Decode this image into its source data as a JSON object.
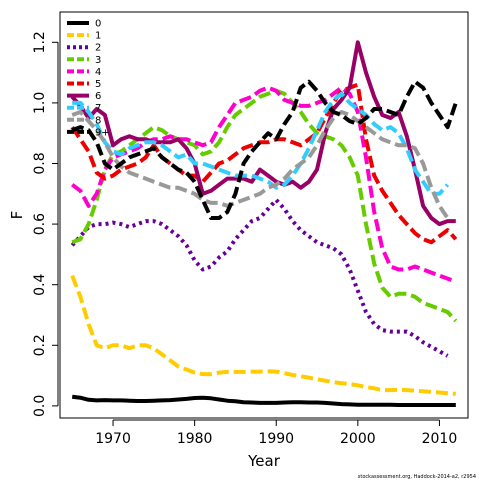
{
  "chart_data": {
    "type": "line",
    "xlabel": "Year",
    "ylabel": "F",
    "xlim": [
      1963.5,
      2013.5
    ],
    "ylim": [
      -0.04,
      1.3
    ],
    "xticks": [
      1970,
      1980,
      1990,
      2000,
      2010
    ],
    "yticks": [
      0.0,
      0.2,
      0.4,
      0.6,
      0.8,
      1.0,
      1.2
    ],
    "ytick_labels": [
      "0.0",
      "0.2",
      "0.4",
      "0.6",
      "0.8",
      "1.0",
      "1.2"
    ],
    "grid": false,
    "legend_position": "top-left",
    "credit": "stockassessment.org, Haddock-2014-a2, r2954",
    "series": [
      {
        "name": "0",
        "color": "#000000",
        "dash": "solid",
        "x": [
          1965,
          1966,
          1967,
          1968,
          1969,
          1970,
          1971,
          1972,
          1973,
          1974,
          1975,
          1976,
          1977,
          1978,
          1979,
          1980,
          1981,
          1982,
          1983,
          1984,
          1985,
          1986,
          1987,
          1988,
          1989,
          1990,
          1991,
          1992,
          1993,
          1994,
          1995,
          1996,
          1997,
          1998,
          1999,
          2000,
          2001,
          2002,
          2003,
          2004,
          2005,
          2006,
          2007,
          2008,
          2009,
          2010,
          2011,
          2012
        ],
        "y": [
          0.03,
          0.027,
          0.02,
          0.018,
          0.019,
          0.018,
          0.018,
          0.017,
          0.016,
          0.016,
          0.017,
          0.018,
          0.019,
          0.021,
          0.023,
          0.026,
          0.027,
          0.025,
          0.021,
          0.017,
          0.015,
          0.012,
          0.011,
          0.01,
          0.01,
          0.01,
          0.011,
          0.012,
          0.012,
          0.011,
          0.011,
          0.01,
          0.008,
          0.006,
          0.005,
          0.004,
          0.004,
          0.004,
          0.004,
          0.004,
          0.003,
          0.003,
          0.003,
          0.003,
          0.003,
          0.003,
          0.003,
          0.003
        ]
      },
      {
        "name": "1",
        "color": "#FFCC00",
        "dash": "dash",
        "x": [
          1965,
          1966,
          1967,
          1968,
          1969,
          1970,
          1971,
          1972,
          1973,
          1974,
          1975,
          1976,
          1977,
          1978,
          1979,
          1980,
          1981,
          1982,
          1983,
          1984,
          1985,
          1986,
          1987,
          1988,
          1989,
          1990,
          1991,
          1992,
          1993,
          1994,
          1995,
          1996,
          1997,
          1998,
          1999,
          2000,
          2001,
          2002,
          2003,
          2004,
          2005,
          2006,
          2007,
          2008,
          2009,
          2010,
          2011,
          2012
        ],
        "y": [
          0.43,
          0.36,
          0.27,
          0.2,
          0.19,
          0.2,
          0.2,
          0.19,
          0.2,
          0.2,
          0.19,
          0.17,
          0.15,
          0.13,
          0.12,
          0.11,
          0.105,
          0.105,
          0.11,
          0.112,
          0.112,
          0.112,
          0.113,
          0.113,
          0.114,
          0.113,
          0.108,
          0.102,
          0.098,
          0.093,
          0.088,
          0.083,
          0.078,
          0.075,
          0.072,
          0.068,
          0.062,
          0.058,
          0.052,
          0.052,
          0.053,
          0.052,
          0.05,
          0.048,
          0.046,
          0.044,
          0.042,
          0.04
        ]
      },
      {
        "name": "2",
        "color": "#660099",
        "dash": "dot",
        "x": [
          1965,
          1966,
          1967,
          1968,
          1969,
          1970,
          1971,
          1972,
          1973,
          1974,
          1975,
          1976,
          1977,
          1978,
          1979,
          1980,
          1981,
          1982,
          1983,
          1984,
          1985,
          1986,
          1987,
          1988,
          1989,
          1990,
          1991,
          1992,
          1993,
          1994,
          1995,
          1996,
          1997,
          1998,
          1999,
          2000,
          2001,
          2002,
          2003,
          2004,
          2005,
          2006,
          2007,
          2008,
          2009,
          2010,
          2011
        ],
        "y": [
          0.53,
          0.56,
          0.59,
          0.6,
          0.6,
          0.605,
          0.6,
          0.59,
          0.6,
          0.61,
          0.61,
          0.6,
          0.58,
          0.56,
          0.53,
          0.48,
          0.45,
          0.46,
          0.49,
          0.51,
          0.55,
          0.58,
          0.61,
          0.62,
          0.65,
          0.68,
          0.65,
          0.61,
          0.58,
          0.56,
          0.54,
          0.53,
          0.52,
          0.5,
          0.45,
          0.38,
          0.31,
          0.27,
          0.25,
          0.245,
          0.245,
          0.245,
          0.23,
          0.21,
          0.195,
          0.18,
          0.165
        ]
      },
      {
        "name": "3",
        "color": "#66CC00",
        "dash": "dash",
        "x": [
          1965,
          1966,
          1967,
          1968,
          1969,
          1970,
          1971,
          1972,
          1973,
          1974,
          1975,
          1976,
          1977,
          1978,
          1979,
          1980,
          1981,
          1982,
          1983,
          1984,
          1985,
          1986,
          1987,
          1988,
          1989,
          1990,
          1991,
          1992,
          1993,
          1994,
          1995,
          1996,
          1997,
          1998,
          1999,
          2000,
          2001,
          2002,
          2003,
          2004,
          2005,
          2006,
          2007,
          2008,
          2009,
          2010,
          2011,
          2012
        ],
        "y": [
          0.54,
          0.55,
          0.6,
          0.68,
          0.78,
          0.83,
          0.84,
          0.86,
          0.88,
          0.9,
          0.92,
          0.91,
          0.89,
          0.88,
          0.87,
          0.86,
          0.83,
          0.84,
          0.87,
          0.92,
          0.96,
          0.98,
          1.0,
          1.02,
          1.03,
          1.04,
          1.03,
          1.0,
          0.97,
          0.93,
          0.9,
          0.89,
          0.88,
          0.86,
          0.82,
          0.76,
          0.6,
          0.47,
          0.39,
          0.36,
          0.37,
          0.37,
          0.36,
          0.34,
          0.33,
          0.32,
          0.31,
          0.28
        ]
      },
      {
        "name": "4",
        "color": "#FF00CC",
        "dash": "dash",
        "x": [
          1965,
          1966,
          1967,
          1968,
          1969,
          1970,
          1971,
          1972,
          1973,
          1974,
          1975,
          1976,
          1977,
          1978,
          1979,
          1980,
          1981,
          1982,
          1983,
          1984,
          1985,
          1986,
          1987,
          1988,
          1989,
          1990,
          1991,
          1992,
          1993,
          1994,
          1995,
          1996,
          1997,
          1998,
          1999,
          2000,
          2001,
          2002,
          2003,
          2004,
          2005,
          2006,
          2007,
          2008,
          2009,
          2010,
          2011,
          2012
        ],
        "y": [
          0.73,
          0.71,
          0.66,
          0.7,
          0.78,
          0.82,
          0.83,
          0.84,
          0.85,
          0.87,
          0.88,
          0.88,
          0.89,
          0.88,
          0.88,
          0.87,
          0.86,
          0.87,
          0.92,
          0.96,
          1.0,
          1.01,
          1.02,
          1.04,
          1.05,
          1.04,
          1.01,
          1.0,
          0.99,
          0.99,
          1.0,
          1.01,
          1.03,
          1.05,
          1.03,
          0.97,
          0.82,
          0.64,
          0.52,
          0.46,
          0.45,
          0.45,
          0.46,
          0.45,
          0.44,
          0.43,
          0.42,
          0.41
        ]
      },
      {
        "name": "5",
        "color": "#EE0000",
        "dash": "dash",
        "x": [
          1965,
          1966,
          1967,
          1968,
          1969,
          1970,
          1971,
          1972,
          1973,
          1974,
          1975,
          1976,
          1977,
          1978,
          1979,
          1980,
          1981,
          1982,
          1983,
          1984,
          1985,
          1986,
          1987,
          1988,
          1989,
          1990,
          1991,
          1992,
          1993,
          1994,
          1995,
          1996,
          1997,
          1998,
          1999,
          2000,
          2001,
          2002,
          2003,
          2004,
          2005,
          2006,
          2007,
          2008,
          2009,
          2010,
          2011,
          2012
        ],
        "y": [
          0.92,
          0.88,
          0.84,
          0.77,
          0.75,
          0.76,
          0.78,
          0.79,
          0.8,
          0.82,
          0.86,
          0.82,
          0.8,
          0.78,
          0.76,
          0.76,
          0.74,
          0.77,
          0.8,
          0.81,
          0.83,
          0.85,
          0.86,
          0.87,
          0.87,
          0.88,
          0.88,
          0.87,
          0.86,
          0.88,
          0.9,
          0.95,
          1.0,
          1.04,
          1.05,
          1.06,
          0.88,
          0.76,
          0.71,
          0.67,
          0.63,
          0.6,
          0.57,
          0.55,
          0.54,
          0.56,
          0.58,
          0.55
        ]
      },
      {
        "name": "6",
        "color": "#990066",
        "dash": "solid",
        "x": [
          1965,
          1966,
          1967,
          1968,
          1969,
          1970,
          1971,
          1972,
          1973,
          1974,
          1975,
          1976,
          1977,
          1978,
          1979,
          1980,
          1981,
          1982,
          1983,
          1984,
          1985,
          1986,
          1987,
          1988,
          1989,
          1990,
          1991,
          1992,
          1993,
          1994,
          1995,
          1996,
          1997,
          1998,
          1999,
          2000,
          2001,
          2002,
          2003,
          2004,
          2005,
          2006,
          2007,
          2008,
          2009,
          2010,
          2011,
          2012
        ],
        "y": [
          1.02,
          0.99,
          0.95,
          0.98,
          0.96,
          0.86,
          0.88,
          0.89,
          0.88,
          0.88,
          0.87,
          0.87,
          0.87,
          0.88,
          0.85,
          0.8,
          0.7,
          0.71,
          0.73,
          0.75,
          0.75,
          0.75,
          0.74,
          0.78,
          0.76,
          0.74,
          0.73,
          0.74,
          0.72,
          0.74,
          0.78,
          0.9,
          0.98,
          1.01,
          1.05,
          1.2,
          1.1,
          1.02,
          0.96,
          0.95,
          0.97,
          0.89,
          0.78,
          0.66,
          0.62,
          0.6,
          0.61,
          0.61
        ]
      },
      {
        "name": "7",
        "color": "#33CCFF",
        "dash": "dash",
        "x": [
          1965,
          1966,
          1967,
          1968,
          1969,
          1970,
          1971,
          1972,
          1973,
          1974,
          1975,
          1976,
          1977,
          1978,
          1979,
          1980,
          1981,
          1982,
          1983,
          1984,
          1985,
          1986,
          1987,
          1988,
          1989,
          1990,
          1991,
          1992,
          1993,
          1994,
          1995,
          1996,
          1997,
          1998,
          1999,
          2000,
          2001,
          2002,
          2003,
          2004,
          2005,
          2006,
          2007,
          2008,
          2009,
          2010,
          2011
        ],
        "y": [
          1.0,
          1.0,
          0.97,
          0.93,
          0.87,
          0.84,
          0.83,
          0.85,
          0.86,
          0.87,
          0.87,
          0.86,
          0.84,
          0.82,
          0.83,
          0.8,
          0.8,
          0.79,
          0.78,
          0.77,
          0.76,
          0.76,
          0.76,
          0.75,
          0.74,
          0.72,
          0.73,
          0.76,
          0.8,
          0.85,
          0.91,
          0.97,
          1.01,
          1.03,
          1.0,
          0.98,
          0.96,
          0.93,
          0.91,
          0.92,
          0.9,
          0.85,
          0.78,
          0.74,
          0.7,
          0.7,
          0.73
        ]
      },
      {
        "name": "8",
        "color": "#999999",
        "dash": "dash",
        "x": [
          1965,
          1966,
          1967,
          1968,
          1969,
          1970,
          1971,
          1972,
          1973,
          1974,
          1975,
          1976,
          1977,
          1978,
          1979,
          1980,
          1981,
          1982,
          1983,
          1984,
          1985,
          1986,
          1987,
          1988,
          1989,
          1990,
          1991,
          1992,
          1993,
          1994,
          1995,
          1996,
          1997,
          1998,
          1999,
          2000,
          2001,
          2002,
          2003,
          2004,
          2005,
          2006,
          2007,
          2008,
          2009,
          2010,
          2011
        ],
        "y": [
          0.96,
          0.97,
          0.94,
          0.91,
          0.87,
          0.82,
          0.79,
          0.77,
          0.76,
          0.75,
          0.74,
          0.73,
          0.72,
          0.72,
          0.71,
          0.7,
          0.68,
          0.67,
          0.67,
          0.66,
          0.67,
          0.68,
          0.69,
          0.7,
          0.72,
          0.73,
          0.75,
          0.78,
          0.8,
          0.82,
          0.86,
          0.91,
          0.95,
          0.97,
          0.96,
          0.94,
          0.92,
          0.9,
          0.88,
          0.87,
          0.86,
          0.86,
          0.85,
          0.8,
          0.72,
          0.66,
          0.62
        ]
      },
      {
        "name": "9+",
        "color": "#000000",
        "dash": "dash",
        "x": [
          1965,
          1966,
          1967,
          1968,
          1969,
          1970,
          1971,
          1972,
          1973,
          1974,
          1975,
          1976,
          1977,
          1978,
          1979,
          1980,
          1981,
          1982,
          1983,
          1984,
          1985,
          1986,
          1987,
          1988,
          1989,
          1990,
          1991,
          1992,
          1993,
          1994,
          1995,
          1996,
          1997,
          1998,
          1999,
          2000,
          2001,
          2002,
          2003,
          2004,
          2005,
          2006,
          2007,
          2008,
          2009,
          2010,
          2011,
          2012
        ],
        "y": [
          0.91,
          0.92,
          0.91,
          0.87,
          0.8,
          0.78,
          0.8,
          0.82,
          0.83,
          0.84,
          0.85,
          0.82,
          0.8,
          0.78,
          0.77,
          0.74,
          0.68,
          0.62,
          0.62,
          0.64,
          0.7,
          0.8,
          0.84,
          0.87,
          0.9,
          0.88,
          0.93,
          0.97,
          1.05,
          1.07,
          1.04,
          1.0,
          0.97,
          0.96,
          0.94,
          0.93,
          0.95,
          0.98,
          0.98,
          0.97,
          0.96,
          1.02,
          1.07,
          1.05,
          1.0,
          0.96,
          0.92,
          1.0
        ]
      }
    ]
  }
}
